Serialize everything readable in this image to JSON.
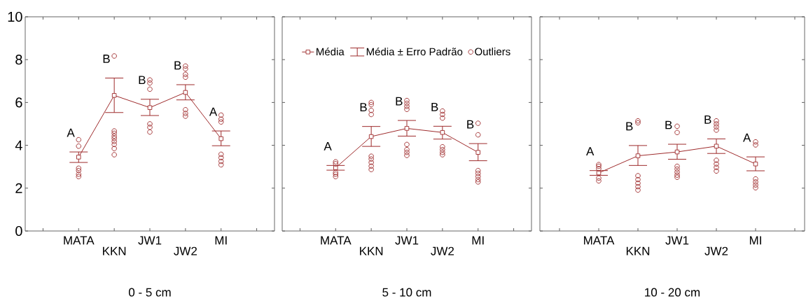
{
  "chart_data": [
    {
      "type": "line",
      "xlabel": "0 - 5 cm",
      "categories": [
        "MATA",
        "KKN",
        "JW1",
        "JW2",
        "MI"
      ],
      "ylim": [
        0,
        10
      ],
      "yticks": [
        0,
        2,
        4,
        6,
        8,
        10
      ],
      "series": [
        {
          "marker": "square",
          "color": "#9e2a2b",
          "values": [
            3.45,
            6.33,
            5.76,
            6.47,
            4.31
          ],
          "errors": [
            [
              3.2,
              3.69
            ],
            [
              5.53,
              7.14
            ],
            [
              5.39,
              6.15
            ],
            [
              6.12,
              6.83
            ],
            [
              3.98,
              4.67
            ]
          ]
        },
        {
          "type": "scatter",
          "marker": "circle",
          "color": "#9e2a2b",
          "x": [
            "MATA",
            "MATA",
            "MATA",
            "MATA",
            "MATA",
            "MATA",
            "KKN",
            "KKN",
            "KKN",
            "KKN",
            "KKN",
            "KKN",
            "KKN",
            "KKN",
            "KKN",
            "JW1",
            "JW1",
            "JW1",
            "JW1",
            "JW1",
            "JW1",
            "JW2",
            "JW2",
            "JW2",
            "JW2",
            "JW2",
            "JW2",
            "JW2",
            "MI",
            "MI",
            "MI",
            "MI",
            "MI",
            "MI",
            "MI"
          ],
          "values": [
            4.26,
            3.96,
            2.93,
            2.82,
            2.65,
            2.54,
            8.17,
            4.67,
            4.56,
            4.43,
            4.32,
            4.18,
            4.04,
            3.85,
            3.56,
            7.05,
            6.91,
            6.62,
            5.0,
            4.84,
            4.62,
            7.7,
            7.57,
            7.31,
            7.18,
            5.66,
            5.49,
            5.36,
            5.41,
            5.22,
            5.09,
            3.58,
            3.42,
            3.25,
            3.09
          ]
        }
      ],
      "annotations": [
        "A",
        "B",
        "B",
        "B",
        "A"
      ]
    },
    {
      "type": "line",
      "xlabel": "5 - 10 cm",
      "categories": [
        "MATA",
        "KKN",
        "JW1",
        "JW2",
        "MI"
      ],
      "ylim": [
        0,
        10
      ],
      "yticks": [
        0,
        2,
        4,
        6,
        8,
        10
      ],
      "tick_labels": "x",
      "legend": "top",
      "series": [
        {
          "name": "Média",
          "marker": "square",
          "color": "#9e2a2b",
          "values": [
            2.95,
            4.41,
            4.79,
            4.6,
            3.67
          ],
          "errors": [
            [
              2.84,
              3.06
            ],
            [
              3.95,
              4.88
            ],
            [
              4.43,
              5.16
            ],
            [
              4.29,
              4.89
            ],
            [
              3.28,
              4.08
            ]
          ]
        },
        {
          "name": "Outliers",
          "type": "scatter",
          "marker": "circle",
          "color": "#9e2a2b",
          "x": [
            "MATA",
            "MATA",
            "MATA",
            "MATA",
            "MATA",
            "KKN",
            "KKN",
            "KKN",
            "KKN",
            "KKN",
            "KKN",
            "KKN",
            "KKN",
            "KKN",
            "JW1",
            "JW1",
            "JW1",
            "JW1",
            "JW1",
            "JW1",
            "JW1",
            "JW1",
            "JW2",
            "JW2",
            "JW2",
            "JW2",
            "JW2",
            "JW2",
            "JW2",
            "MI",
            "MI",
            "MI",
            "MI",
            "MI",
            "MI",
            "MI"
          ],
          "values": [
            3.23,
            3.14,
            2.73,
            2.65,
            2.54,
            6.0,
            5.9,
            5.63,
            5.44,
            3.49,
            3.36,
            3.2,
            3.03,
            2.87,
            6.09,
            5.96,
            5.82,
            5.68,
            4.04,
            3.8,
            3.67,
            3.53,
            5.6,
            5.44,
            5.27,
            3.93,
            3.8,
            3.67,
            3.56,
            5.03,
            4.49,
            2.82,
            2.69,
            2.54,
            2.4,
            2.29
          ]
        }
      ],
      "annotations": [
        "A",
        "B",
        "B",
        "B",
        "B",
        "Média ± Erro Padrão"
      ]
    },
    {
      "type": "line",
      "xlabel": "10 - 20 cm",
      "categories": [
        "MATA",
        "KKN",
        "JW1",
        "JW2",
        "MI"
      ],
      "ylim": [
        0,
        10
      ],
      "yticks": [
        0,
        2,
        4,
        6,
        8,
        10
      ],
      "tick_labels": "x",
      "series": [
        {
          "marker": "square",
          "color": "#9e2a2b",
          "values": [
            2.71,
            3.51,
            3.69,
            3.96,
            3.13
          ],
          "errors": [
            [
              2.6,
              2.82
            ],
            [
              3.06,
              3.99
            ],
            [
              3.35,
              4.05
            ],
            [
              3.62,
              4.3
            ],
            [
              2.81,
              3.46
            ]
          ]
        },
        {
          "type": "scatter",
          "marker": "circle",
          "color": "#9e2a2b",
          "x": [
            "MATA",
            "MATA",
            "MATA",
            "MATA",
            "MATA",
            "KKN",
            "KKN",
            "KKN",
            "KKN",
            "KKN",
            "KKN",
            "KKN",
            "JW1",
            "JW1",
            "JW1",
            "JW1",
            "JW1",
            "JW1",
            "JW1",
            "JW2",
            "JW2",
            "JW2",
            "JW2",
            "JW2",
            "JW2",
            "JW2",
            "JW2",
            "MI",
            "MI",
            "MI",
            "MI",
            "MI",
            "MI"
          ],
          "values": [
            3.1,
            3.02,
            2.91,
            2.47,
            2.34,
            5.14,
            5.05,
            2.58,
            2.4,
            2.23,
            2.07,
            1.91,
            4.89,
            4.6,
            3.02,
            2.89,
            2.75,
            2.61,
            2.51,
            5.14,
            5.0,
            4.86,
            4.71,
            3.3,
            3.13,
            2.97,
            2.8,
            4.16,
            4.02,
            2.43,
            2.29,
            2.15,
            2.02
          ]
        }
      ],
      "annotations": [
        "A",
        "B",
        "B",
        "B",
        "A"
      ]
    }
  ]
}
